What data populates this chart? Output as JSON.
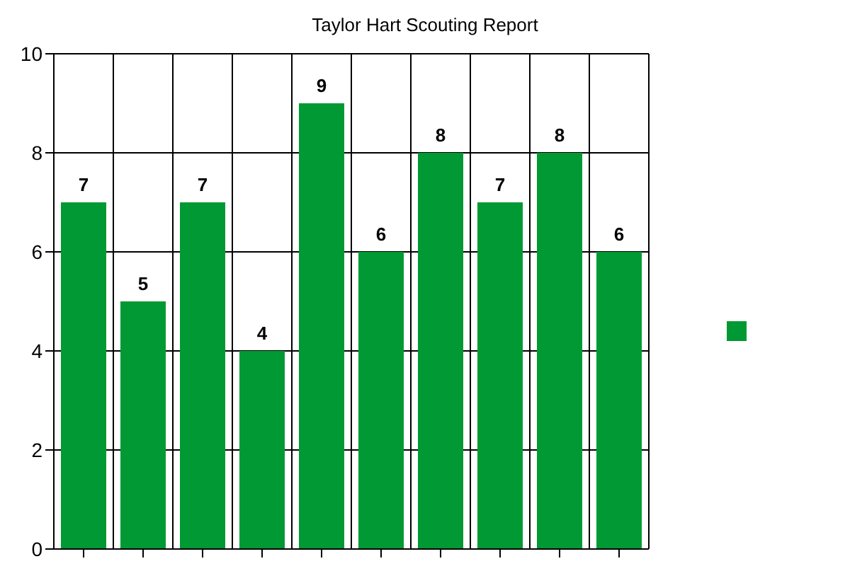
{
  "chart_data": {
    "type": "bar",
    "title": "Taylor Hart Scouting Report",
    "categories": [
      null,
      null,
      null,
      null,
      null,
      null,
      null,
      null,
      null,
      null
    ],
    "series": [
      {
        "color": "#009933",
        "values": [
          7,
          5,
          7,
          4,
          9,
          6,
          8,
          7,
          8,
          6
        ]
      }
    ],
    "ylim": [
      0,
      10
    ],
    "yticks": [
      0,
      2,
      4,
      6,
      8,
      10
    ],
    "grid": true,
    "data_labels": true
  }
}
